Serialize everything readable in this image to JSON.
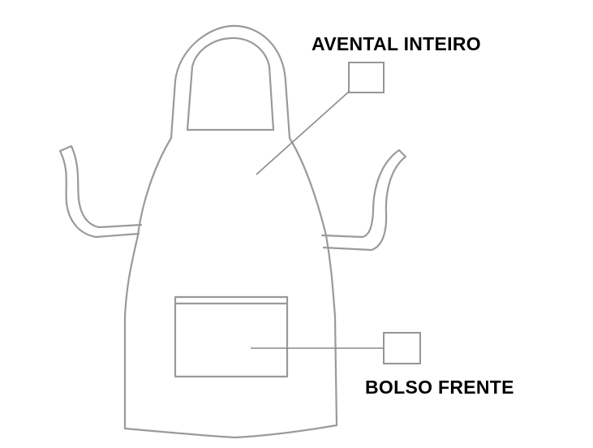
{
  "labels": {
    "whole_apron": "AVENTAL INTEIRO",
    "front_pocket": "BOLSO FRENTE"
  },
  "colors": {
    "outline": "#9a9a9a",
    "text": "#000000",
    "background": "#ffffff"
  }
}
